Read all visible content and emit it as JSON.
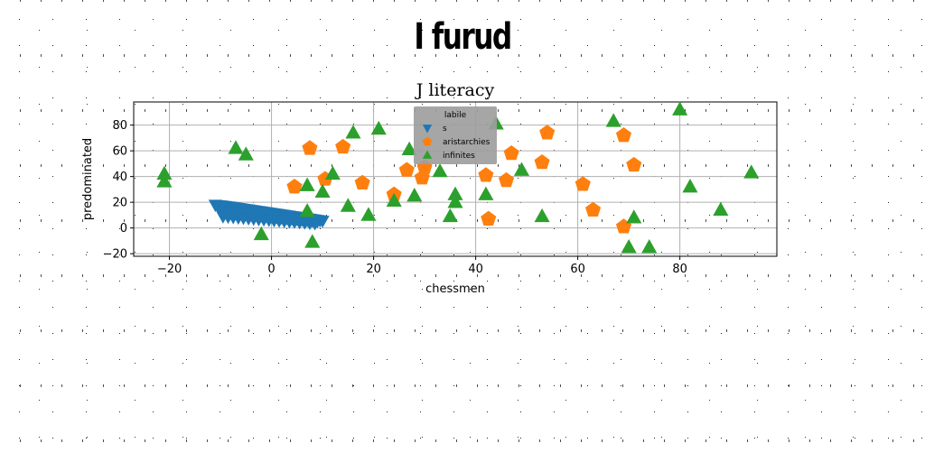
{
  "page": {
    "title": "I furud"
  },
  "chart_data": {
    "type": "scatter",
    "title": "J literacy",
    "xlabel": "chessmen",
    "ylabel": "predominated",
    "xlim": [
      -27,
      99
    ],
    "ylim": [
      -22,
      98
    ],
    "xticks": [
      -20,
      0,
      20,
      40,
      60,
      80
    ],
    "yticks": [
      -20,
      0,
      20,
      40,
      60,
      80
    ],
    "grid": true,
    "legend": {
      "title": "labile",
      "placement": "top-center"
    },
    "series": [
      {
        "name": "s",
        "marker": "triangle-down",
        "color": "#1f77b4",
        "x": [
          -11,
          -10.5,
          -10,
          -9.5,
          -9,
          -8.5,
          -8,
          -7.5,
          -7,
          -6.5,
          -6,
          -5.5,
          -5,
          -4.5,
          -4,
          -3.5,
          -3,
          -2.5,
          -2,
          -1.5,
          -1,
          -0.5,
          0,
          0.5,
          1,
          1.5,
          2,
          2.5,
          3,
          3.5,
          4,
          4.5,
          5,
          5.5,
          6,
          6.5,
          7,
          7.5,
          8,
          8.5,
          9,
          9.5,
          10,
          -10,
          -9,
          -8,
          -7,
          -6,
          -5,
          -4,
          -3,
          -2,
          -1,
          0,
          1,
          2,
          3,
          4,
          5,
          6,
          7,
          8,
          9,
          -9.5,
          -8.5,
          -7.5,
          -6.5,
          -5.5,
          -4.5,
          -3.5,
          -2.5,
          -1.5,
          -0.5,
          0.5,
          1.5,
          2.5,
          3.5,
          4.5,
          5.5,
          6.5,
          7.5,
          8.5
        ],
        "y": [
          18,
          17.7,
          17.5,
          17.2,
          17,
          16.7,
          16.4,
          16.1,
          15.8,
          15.5,
          15.2,
          14.9,
          14.6,
          14.3,
          14,
          13.7,
          13.4,
          13.1,
          12.8,
          12.5,
          12.2,
          11.9,
          11.6,
          11.3,
          11,
          10.7,
          10.4,
          10.1,
          9.8,
          9.5,
          9.2,
          8.9,
          8.6,
          8.3,
          8,
          7.7,
          7.4,
          7.1,
          6.8,
          6.5,
          6.2,
          5.9,
          5.6,
          13,
          12.6,
          12.2,
          11.8,
          11.4,
          11,
          10.6,
          10.2,
          9.8,
          9.4,
          9,
          8.6,
          8.2,
          7.8,
          7.4,
          7,
          6.6,
          6.2,
          5.8,
          5.4,
          9,
          8.7,
          8.4,
          8.1,
          7.8,
          7.5,
          7.2,
          6.9,
          6.6,
          6.3,
          6,
          5.7,
          5.4,
          5.1,
          4.8,
          4.5,
          4.2,
          3.9,
          3.6
        ]
      },
      {
        "name": "aristarchies",
        "marker": "pentagon",
        "color": "#ff7f0e",
        "x": [
          4.5,
          7.5,
          10.5,
          14,
          17.8,
          24,
          26.5,
          29.5,
          30,
          42,
          42.5,
          46,
          47,
          53,
          54,
          61,
          63,
          69,
          69,
          71
        ],
        "y": [
          32,
          62,
          38,
          63,
          35,
          26,
          45,
          39,
          47,
          41,
          7,
          37,
          58,
          51,
          74,
          34,
          14,
          72,
          1,
          49
        ]
      },
      {
        "name": "infinites",
        "marker": "triangle-up",
        "color": "#2ca02c",
        "x": [
          -21,
          -21,
          -7,
          -5,
          -2,
          7,
          7,
          8,
          10,
          12,
          15,
          16,
          19,
          21,
          24,
          27,
          28,
          33,
          35,
          36,
          36,
          42,
          44,
          49,
          53,
          67,
          70,
          71,
          74,
          80,
          82,
          88,
          94
        ],
        "y": [
          42,
          36,
          62,
          57,
          -5,
          33,
          13,
          -11,
          28,
          42,
          17,
          74,
          10,
          77,
          21,
          61,
          25,
          44,
          9,
          26,
          20,
          26,
          81,
          45,
          9,
          83,
          -15,
          8,
          -15,
          92,
          32,
          14,
          43
        ]
      }
    ]
  }
}
